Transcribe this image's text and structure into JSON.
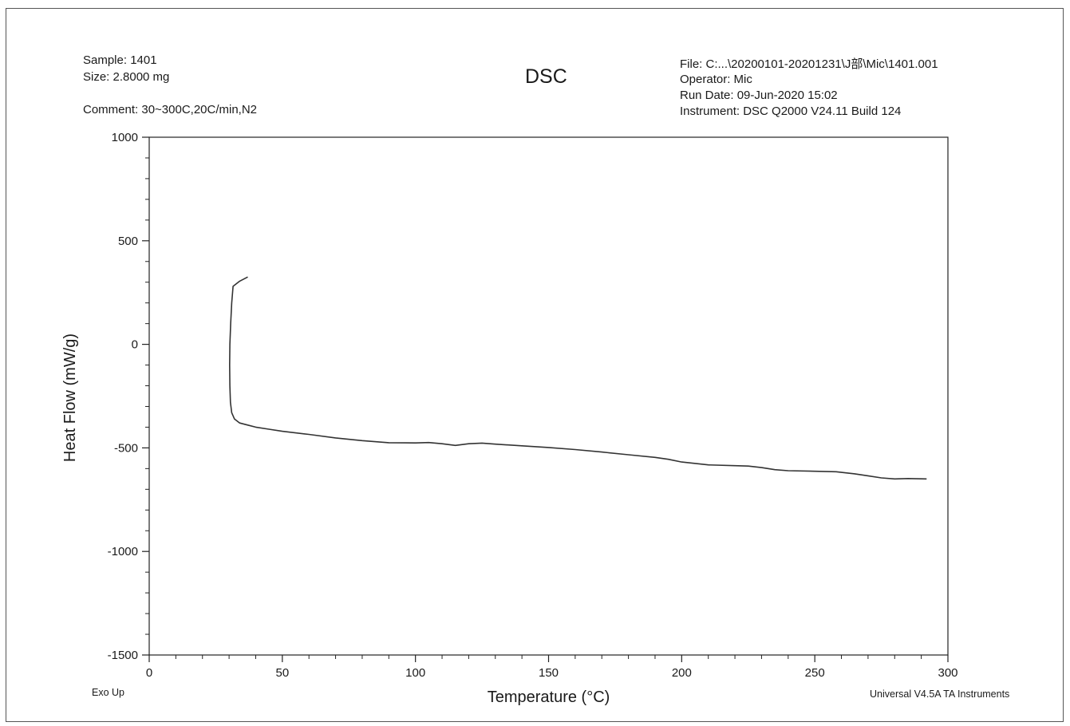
{
  "header": {
    "sample": "Sample: 1401",
    "size": "Size:  2.8000 mg",
    "comment": "Comment: 30~300C,20C/min,N2",
    "title": "DSC",
    "file": "File: C:...\\20200101-20201231\\J部\\Mic\\1401.001",
    "operator": "Operator: Mic",
    "run_date": "Run Date: 09-Jun-2020 15:02",
    "instrument": "Instrument: DSC Q2000 V24.11 Build 124"
  },
  "footer": {
    "exo": "Exo Up",
    "software": "Universal V4.5A TA Instruments"
  },
  "colors": {
    "line": "#333333",
    "axis": "#222222",
    "frame": "#555555"
  },
  "chart_data": {
    "type": "line",
    "title": "DSC",
    "xlabel": "Temperature (°C)",
    "ylabel": "Heat Flow (mW/g)",
    "xlim": [
      0,
      300
    ],
    "ylim": [
      -1500,
      1000
    ],
    "xticks": [
      0,
      50,
      100,
      150,
      200,
      250,
      300
    ],
    "yticks": [
      1000,
      500,
      0,
      -500,
      -1000,
      -1500
    ],
    "grid": false,
    "series": [
      {
        "x": [
          37.0,
          34.0,
          31.5,
          31.0,
          30.6,
          30.3,
          30.2,
          30.3,
          30.5,
          31.0,
          32.0,
          34.0,
          37.0,
          40.0,
          45.0,
          50.0,
          60.0,
          70.0,
          80.0,
          90.0,
          100.0,
          105.0,
          110.0,
          115.0,
          120.0,
          125.0,
          130.0,
          140.0,
          150.0,
          160.0,
          170.0,
          180.0,
          190.0,
          195.0,
          200.0,
          210.0,
          220.0,
          225.0,
          230.0,
          235.0,
          240.0,
          250.0,
          258.0,
          265.0,
          270.0,
          275.0,
          280.0,
          285.0,
          292.0
        ],
        "y": [
          325,
          305,
          280,
          200,
          100,
          0,
          -100,
          -200,
          -280,
          -330,
          -360,
          -380,
          -390,
          -400,
          -410,
          -420,
          -435,
          -452,
          -465,
          -475,
          -476,
          -474,
          -480,
          -488,
          -480,
          -477,
          -482,
          -490,
          -498,
          -508,
          -520,
          -533,
          -546,
          -555,
          -568,
          -582,
          -586,
          -588,
          -595,
          -605,
          -610,
          -613,
          -615,
          -625,
          -635,
          -645,
          -650,
          -648,
          -650
        ]
      }
    ]
  }
}
